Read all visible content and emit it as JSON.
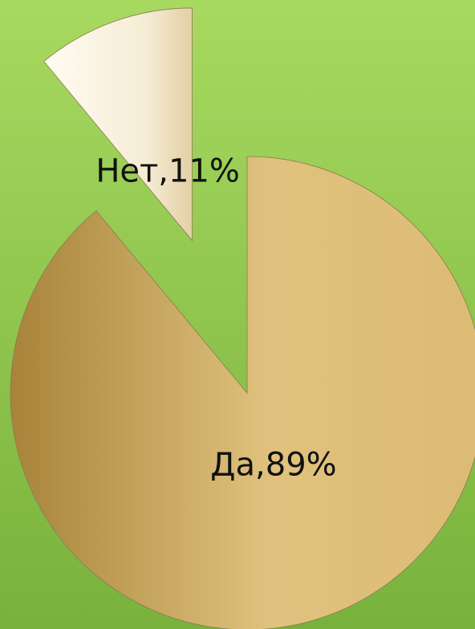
{
  "chart_data": {
    "type": "pie",
    "values": [
      89,
      11
    ],
    "value_labels": [
      "Да,89%",
      "Нет,11%"
    ],
    "colors": [
      "#d9b877",
      "#faf3e2"
    ],
    "exploded": [
      false,
      true
    ]
  }
}
